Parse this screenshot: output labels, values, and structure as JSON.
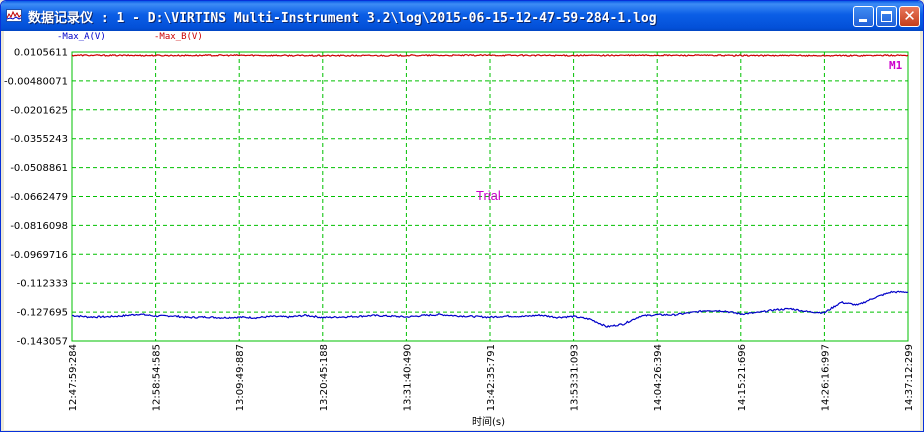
{
  "window": {
    "title": "数据记录仪 : 1 - D:\\VIRTINS Multi-Instrument 3.2\\log\\2015-06-15-12-47-59-284-1.log",
    "icon": "data-logger-icon",
    "minimize_icon": "minimize-icon",
    "maximize_icon": "maximize-icon",
    "close_icon": "close-icon"
  },
  "chart_data": {
    "type": "line",
    "legend": [
      "-Max_A(V)",
      "-Max_B(V)"
    ],
    "legend_position": "top-left",
    "xlabel": "时间(s)",
    "x_ticks": [
      "12:47:59:284",
      "12:58:54:585",
      "13:09:49:887",
      "13:20:45:188",
      "13:31:40:490",
      "13:42:35:791",
      "13:53:31:093",
      "14:04:26:394",
      "14:15:21:696",
      "14:26:16:997",
      "14:37:12:299"
    ],
    "y_ticks": [
      "0.0105611",
      "-0.00480071",
      "-0.0201625",
      "-0.0355243",
      "-0.0508861",
      "-0.0662479",
      "-0.0816098",
      "-0.0969716",
      "-0.112333",
      "-0.127695",
      "-0.143057"
    ],
    "ylim": [
      -0.143057,
      0.0105611
    ],
    "grid": true,
    "grid_color": "#00c000",
    "watermark": "Trial",
    "marker_label": "M1",
    "series": [
      {
        "name": "-Max_A(V)",
        "color": "#0000c8",
        "x": [
          0,
          0.02,
          0.04,
          0.06,
          0.08,
          0.1,
          0.12,
          0.14,
          0.16,
          0.18,
          0.2,
          0.22,
          0.24,
          0.26,
          0.28,
          0.3,
          0.32,
          0.34,
          0.36,
          0.38,
          0.4,
          0.42,
          0.44,
          0.46,
          0.48,
          0.5,
          0.52,
          0.54,
          0.56,
          0.58,
          0.6,
          0.62,
          0.64,
          0.66,
          0.68,
          0.7,
          0.72,
          0.74,
          0.76,
          0.78,
          0.8,
          0.82,
          0.84,
          0.86,
          0.88,
          0.9,
          0.92,
          0.94,
          0.96,
          0.98,
          1.0
        ],
        "values": [
          -0.1295,
          -0.1303,
          -0.1302,
          -0.1297,
          -0.1288,
          -0.1298,
          -0.1297,
          -0.1306,
          -0.1303,
          -0.1307,
          -0.1304,
          -0.1307,
          -0.13,
          -0.1303,
          -0.1294,
          -0.1306,
          -0.1303,
          -0.13,
          -0.1295,
          -0.1298,
          -0.1303,
          -0.1295,
          -0.129,
          -0.1297,
          -0.13,
          -0.1304,
          -0.1298,
          -0.13,
          -0.1293,
          -0.1305,
          -0.13,
          -0.1315,
          -0.1355,
          -0.134,
          -0.1298,
          -0.1291,
          -0.1292,
          -0.128,
          -0.1268,
          -0.1271,
          -0.1287,
          -0.128,
          -0.1265,
          -0.1259,
          -0.1275,
          -0.128,
          -0.1225,
          -0.124,
          -0.12,
          -0.117,
          -0.117
        ]
      },
      {
        "name": "-Max_B(V)",
        "color": "#cc0000",
        "x": [
          0,
          0.1,
          0.2,
          0.3,
          0.4,
          0.5,
          0.6,
          0.7,
          0.8,
          0.9,
          1.0
        ],
        "values": [
          0.0088,
          0.0087,
          0.0088,
          0.0086,
          0.0087,
          0.0088,
          0.0087,
          0.0088,
          0.0087,
          0.0086,
          0.0088
        ]
      }
    ]
  }
}
